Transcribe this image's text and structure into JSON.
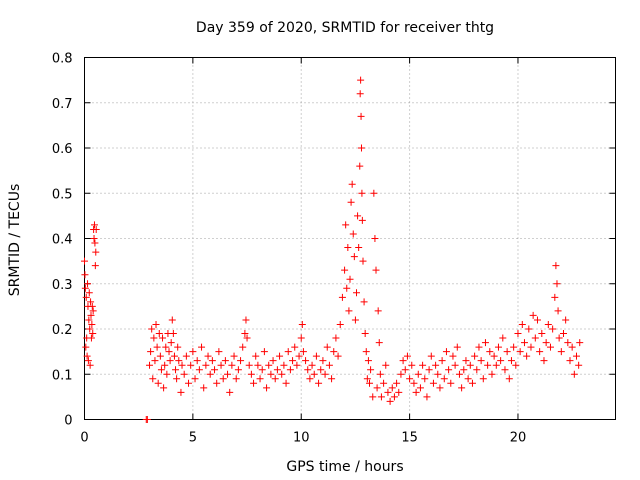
{
  "chart_data": {
    "type": "scatter",
    "title": "Day 359 of 2020, SRMTID for receiver thtg",
    "xlabel": "GPS time / hours",
    "ylabel": "SRMTID / TECUs",
    "xlim": [
      0,
      24.5
    ],
    "ylim": [
      0,
      0.8
    ],
    "x_ticks": [
      0,
      5,
      10,
      15,
      20
    ],
    "x_tick_labels": [
      "0",
      "5",
      "10",
      "15",
      "20"
    ],
    "y_ticks": [
      0,
      0.1,
      0.2,
      0.3,
      0.4,
      0.5,
      0.6,
      0.7,
      0.8
    ],
    "y_tick_labels": [
      "0",
      "0.1",
      "0.2",
      "0.3",
      "0.4",
      "0.5",
      "0.6",
      "0.7",
      "0.8"
    ],
    "grid": true,
    "marker": "plus",
    "color": "#ff0000",
    "series": [
      {
        "name": "SRMTID",
        "points": [
          [
            0.0,
            0.35
          ],
          [
            0.02,
            0.32
          ],
          [
            0.04,
            0.29
          ],
          [
            0.06,
            0.16
          ],
          [
            0.08,
            0.27
          ],
          [
            0.1,
            0.18
          ],
          [
            0.12,
            0.14
          ],
          [
            0.14,
            0.3
          ],
          [
            0.16,
            0.25
          ],
          [
            0.18,
            0.13
          ],
          [
            0.2,
            0.22
          ],
          [
            0.22,
            0.28
          ],
          [
            0.24,
            0.2
          ],
          [
            0.26,
            0.12
          ],
          [
            0.28,
            0.26
          ],
          [
            0.3,
            0.23
          ],
          [
            0.32,
            0.18
          ],
          [
            0.34,
            0.21
          ],
          [
            0.36,
            0.25
          ],
          [
            0.38,
            0.19
          ],
          [
            0.4,
            0.24
          ],
          [
            0.42,
            0.42
          ],
          [
            0.44,
            0.4
          ],
          [
            0.46,
            0.43
          ],
          [
            0.48,
            0.39
          ],
          [
            0.5,
            0.34
          ],
          [
            0.52,
            0.37
          ],
          [
            0.54,
            0.42
          ],
          [
            2.85,
            0.0
          ],
          [
            2.9,
            0.0
          ],
          [
            3.0,
            0.12
          ],
          [
            3.05,
            0.15
          ],
          [
            3.1,
            0.2
          ],
          [
            3.15,
            0.09
          ],
          [
            3.2,
            0.18
          ],
          [
            3.25,
            0.13
          ],
          [
            3.3,
            0.21
          ],
          [
            3.35,
            0.16
          ],
          [
            3.4,
            0.08
          ],
          [
            3.45,
            0.19
          ],
          [
            3.5,
            0.14
          ],
          [
            3.55,
            0.11
          ],
          [
            3.6,
            0.18
          ],
          [
            3.65,
            0.07
          ],
          [
            3.7,
            0.12
          ],
          [
            3.75,
            0.16
          ],
          [
            3.8,
            0.1
          ],
          [
            3.85,
            0.19
          ],
          [
            3.9,
            0.15
          ],
          [
            3.95,
            0.13
          ],
          [
            4.0,
            0.17
          ],
          [
            4.05,
            0.22
          ],
          [
            4.1,
            0.19
          ],
          [
            4.15,
            0.14
          ],
          [
            4.2,
            0.11
          ],
          [
            4.25,
            0.09
          ],
          [
            4.3,
            0.16
          ],
          [
            4.35,
            0.13
          ],
          [
            4.45,
            0.06
          ],
          [
            4.5,
            0.12
          ],
          [
            4.6,
            0.1
          ],
          [
            4.7,
            0.14
          ],
          [
            4.8,
            0.08
          ],
          [
            4.9,
            0.12
          ],
          [
            5.0,
            0.15
          ],
          [
            5.1,
            0.09
          ],
          [
            5.2,
            0.13
          ],
          [
            5.3,
            0.11
          ],
          [
            5.4,
            0.16
          ],
          [
            5.5,
            0.07
          ],
          [
            5.6,
            0.12
          ],
          [
            5.7,
            0.14
          ],
          [
            5.8,
            0.1
          ],
          [
            5.9,
            0.13
          ],
          [
            6.0,
            0.11
          ],
          [
            6.1,
            0.08
          ],
          [
            6.2,
            0.15
          ],
          [
            6.3,
            0.12
          ],
          [
            6.4,
            0.09
          ],
          [
            6.5,
            0.13
          ],
          [
            6.6,
            0.1
          ],
          [
            6.7,
            0.06
          ],
          [
            6.8,
            0.12
          ],
          [
            6.9,
            0.14
          ],
          [
            7.0,
            0.09
          ],
          [
            7.1,
            0.11
          ],
          [
            7.2,
            0.13
          ],
          [
            7.3,
            0.16
          ],
          [
            7.4,
            0.19
          ],
          [
            7.45,
            0.22
          ],
          [
            7.5,
            0.18
          ],
          [
            7.6,
            0.12
          ],
          [
            7.7,
            0.1
          ],
          [
            7.8,
            0.08
          ],
          [
            7.9,
            0.14
          ],
          [
            8.0,
            0.12
          ],
          [
            8.1,
            0.09
          ],
          [
            8.2,
            0.11
          ],
          [
            8.3,
            0.15
          ],
          [
            8.4,
            0.07
          ],
          [
            8.5,
            0.12
          ],
          [
            8.6,
            0.1
          ],
          [
            8.7,
            0.13
          ],
          [
            8.8,
            0.09
          ],
          [
            8.9,
            0.11
          ],
          [
            9.0,
            0.14
          ],
          [
            9.1,
            0.1
          ],
          [
            9.2,
            0.12
          ],
          [
            9.3,
            0.08
          ],
          [
            9.4,
            0.15
          ],
          [
            9.5,
            0.11
          ],
          [
            9.6,
            0.13
          ],
          [
            9.7,
            0.16
          ],
          [
            9.8,
            0.12
          ],
          [
            9.9,
            0.14
          ],
          [
            10.0,
            0.18
          ],
          [
            10.05,
            0.21
          ],
          [
            10.1,
            0.15
          ],
          [
            10.2,
            0.13
          ],
          [
            10.3,
            0.11
          ],
          [
            10.4,
            0.09
          ],
          [
            10.5,
            0.12
          ],
          [
            10.6,
            0.1
          ],
          [
            10.7,
            0.14
          ],
          [
            10.8,
            0.08
          ],
          [
            10.9,
            0.11
          ],
          [
            11.0,
            0.13
          ],
          [
            11.1,
            0.1
          ],
          [
            11.2,
            0.16
          ],
          [
            11.3,
            0.12
          ],
          [
            11.4,
            0.09
          ],
          [
            11.5,
            0.15
          ],
          [
            11.6,
            0.18
          ],
          [
            11.7,
            0.14
          ],
          [
            11.8,
            0.21
          ],
          [
            11.9,
            0.27
          ],
          [
            12.0,
            0.33
          ],
          [
            12.05,
            0.43
          ],
          [
            12.1,
            0.29
          ],
          [
            12.15,
            0.38
          ],
          [
            12.2,
            0.24
          ],
          [
            12.25,
            0.31
          ],
          [
            12.3,
            0.48
          ],
          [
            12.35,
            0.52
          ],
          [
            12.4,
            0.41
          ],
          [
            12.45,
            0.36
          ],
          [
            12.5,
            0.22
          ],
          [
            12.55,
            0.28
          ],
          [
            12.6,
            0.45
          ],
          [
            12.65,
            0.38
          ],
          [
            12.7,
            0.56
          ],
          [
            12.72,
            0.72
          ],
          [
            12.74,
            0.75
          ],
          [
            12.76,
            0.67
          ],
          [
            12.78,
            0.6
          ],
          [
            12.8,
            0.5
          ],
          [
            12.82,
            0.44
          ],
          [
            12.85,
            0.35
          ],
          [
            12.9,
            0.26
          ],
          [
            12.95,
            0.19
          ],
          [
            13.0,
            0.15
          ],
          [
            13.05,
            0.09
          ],
          [
            13.1,
            0.13
          ],
          [
            13.15,
            0.08
          ],
          [
            13.2,
            0.11
          ],
          [
            13.3,
            0.05
          ],
          [
            13.35,
            0.5
          ],
          [
            13.4,
            0.4
          ],
          [
            13.45,
            0.33
          ],
          [
            13.5,
            0.07
          ],
          [
            13.55,
            0.24
          ],
          [
            13.6,
            0.17
          ],
          [
            13.65,
            0.1
          ],
          [
            13.7,
            0.05
          ],
          [
            13.8,
            0.08
          ],
          [
            13.9,
            0.12
          ],
          [
            14.0,
            0.06
          ],
          [
            14.1,
            0.04
          ],
          [
            14.2,
            0.07
          ],
          [
            14.3,
            0.05
          ],
          [
            14.4,
            0.08
          ],
          [
            14.5,
            0.06
          ],
          [
            14.6,
            0.1
          ],
          [
            14.7,
            0.13
          ],
          [
            14.8,
            0.11
          ],
          [
            14.9,
            0.14
          ],
          [
            15.0,
            0.09
          ],
          [
            15.1,
            0.12
          ],
          [
            15.2,
            0.08
          ],
          [
            15.3,
            0.06
          ],
          [
            15.4,
            0.1
          ],
          [
            15.5,
            0.07
          ],
          [
            15.6,
            0.12
          ],
          [
            15.7,
            0.09
          ],
          [
            15.8,
            0.05
          ],
          [
            15.9,
            0.11
          ],
          [
            16.0,
            0.14
          ],
          [
            16.1,
            0.08
          ],
          [
            16.2,
            0.12
          ],
          [
            16.3,
            0.1
          ],
          [
            16.4,
            0.07
          ],
          [
            16.5,
            0.13
          ],
          [
            16.6,
            0.09
          ],
          [
            16.7,
            0.15
          ],
          [
            16.8,
            0.11
          ],
          [
            16.9,
            0.08
          ],
          [
            17.0,
            0.14
          ],
          [
            17.1,
            0.12
          ],
          [
            17.2,
            0.16
          ],
          [
            17.3,
            0.1
          ],
          [
            17.4,
            0.07
          ],
          [
            17.5,
            0.11
          ],
          [
            17.6,
            0.13
          ],
          [
            17.7,
            0.09
          ],
          [
            17.8,
            0.12
          ],
          [
            17.9,
            0.08
          ],
          [
            18.0,
            0.14
          ],
          [
            18.1,
            0.11
          ],
          [
            18.2,
            0.16
          ],
          [
            18.3,
            0.13
          ],
          [
            18.4,
            0.09
          ],
          [
            18.5,
            0.17
          ],
          [
            18.6,
            0.12
          ],
          [
            18.7,
            0.15
          ],
          [
            18.8,
            0.1
          ],
          [
            18.9,
            0.14
          ],
          [
            19.0,
            0.12
          ],
          [
            19.1,
            0.16
          ],
          [
            19.2,
            0.13
          ],
          [
            19.3,
            0.18
          ],
          [
            19.4,
            0.11
          ],
          [
            19.5,
            0.15
          ],
          [
            19.6,
            0.09
          ],
          [
            19.7,
            0.13
          ],
          [
            19.8,
            0.16
          ],
          [
            19.9,
            0.12
          ],
          [
            20.0,
            0.19
          ],
          [
            20.1,
            0.15
          ],
          [
            20.2,
            0.21
          ],
          [
            20.3,
            0.17
          ],
          [
            20.4,
            0.14
          ],
          [
            20.5,
            0.2
          ],
          [
            20.6,
            0.16
          ],
          [
            20.7,
            0.23
          ],
          [
            20.8,
            0.18
          ],
          [
            20.9,
            0.22
          ],
          [
            21.0,
            0.15
          ],
          [
            21.1,
            0.19
          ],
          [
            21.2,
            0.13
          ],
          [
            21.3,
            0.17
          ],
          [
            21.4,
            0.21
          ],
          [
            21.5,
            0.16
          ],
          [
            21.6,
            0.2
          ],
          [
            21.7,
            0.27
          ],
          [
            21.75,
            0.34
          ],
          [
            21.8,
            0.3
          ],
          [
            21.85,
            0.24
          ],
          [
            21.9,
            0.18
          ],
          [
            22.0,
            0.15
          ],
          [
            22.1,
            0.19
          ],
          [
            22.2,
            0.22
          ],
          [
            22.3,
            0.17
          ],
          [
            22.4,
            0.13
          ],
          [
            22.5,
            0.16
          ],
          [
            22.6,
            0.1
          ],
          [
            22.7,
            0.14
          ],
          [
            22.8,
            0.12
          ],
          [
            22.85,
            0.17
          ]
        ]
      }
    ]
  }
}
